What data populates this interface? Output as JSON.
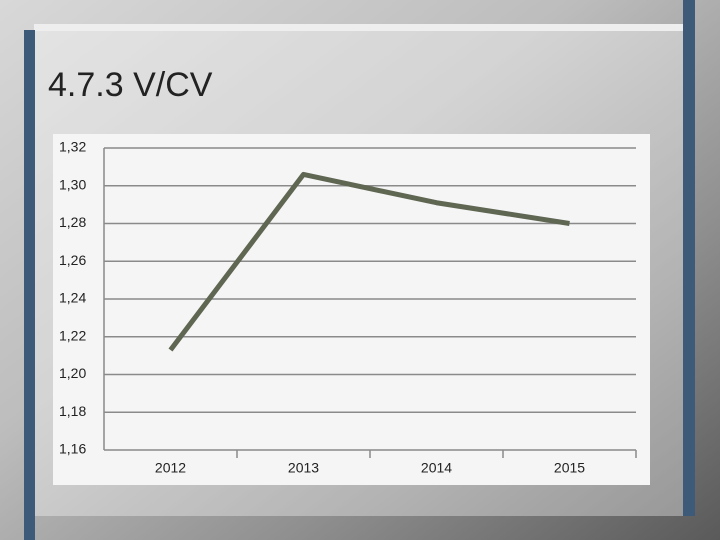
{
  "chart_data": {
    "type": "line",
    "title": "4.7.3 V/CV",
    "categories": [
      "2012",
      "2013",
      "2014",
      "2015"
    ],
    "series": [
      {
        "name": "V/CV",
        "color": "#5f6652",
        "values": [
          1.213,
          1.306,
          1.291,
          1.28
        ]
      }
    ],
    "ylim": [
      1.16,
      1.32
    ],
    "yticks": [
      {
        "value": 1.16,
        "label": "1,16"
      },
      {
        "value": 1.18,
        "label": "1,18"
      },
      {
        "value": 1.2,
        "label": "1,20"
      },
      {
        "value": 1.22,
        "label": "1,22"
      },
      {
        "value": 1.24,
        "label": "1,24"
      },
      {
        "value": 1.26,
        "label": "1,26"
      },
      {
        "value": 1.28,
        "label": "1,28"
      },
      {
        "value": 1.3,
        "label": "1,30"
      },
      {
        "value": 1.32,
        "label": "1,32"
      }
    ],
    "grid": true
  }
}
